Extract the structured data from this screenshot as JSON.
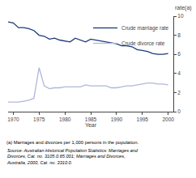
{
  "chart_data": {
    "type": "line",
    "xlabel": "Year",
    "ylabel": "rate(a)",
    "x": [
      1969,
      1970,
      1971,
      1972,
      1973,
      1974,
      1975,
      1976,
      1977,
      1978,
      1979,
      1980,
      1981,
      1982,
      1983,
      1984,
      1985,
      1986,
      1987,
      1988,
      1989,
      1990,
      1991,
      1992,
      1993,
      1994,
      1995,
      1996,
      1997,
      1998,
      1999,
      2000
    ],
    "series": [
      {
        "name": "Crude marriage rate",
        "color": "#1a3a7a",
        "values": [
          9.4,
          9.3,
          8.8,
          8.8,
          8.7,
          8.5,
          8.0,
          7.9,
          7.6,
          7.7,
          7.5,
          7.4,
          7.3,
          7.7,
          7.5,
          7.3,
          7.6,
          7.5,
          7.4,
          7.3,
          7.2,
          7.1,
          6.9,
          6.9,
          6.8,
          6.5,
          6.4,
          6.3,
          6.1,
          6.0,
          6.0,
          6.1
        ]
      },
      {
        "name": "Crude divorce rate",
        "color": "#b0b8d8",
        "values": [
          1.0,
          1.0,
          1.0,
          1.1,
          1.2,
          1.4,
          4.6,
          2.7,
          2.4,
          2.5,
          2.5,
          2.6,
          2.6,
          2.6,
          2.6,
          2.8,
          2.7,
          2.7,
          2.7,
          2.7,
          2.5,
          2.5,
          2.6,
          2.7,
          2.7,
          2.8,
          2.9,
          3.0,
          3.0,
          2.9,
          2.9,
          2.8
        ]
      }
    ],
    "xlim": [
      1969,
      2001
    ],
    "ylim": [
      0,
      10
    ],
    "xticks": [
      1970,
      1975,
      1980,
      1985,
      1990,
      1995,
      2000
    ],
    "yticks": [
      0,
      2,
      4,
      6,
      8,
      10
    ],
    "grid": false,
    "legend": "upper right",
    "annotations": [
      "(a) Marriages and divorces per 1,000 persons in the population.",
      "Source: Australian Historical Population Statistics: Marriages and",
      "Divorces, Cat. no. 3105.0.65.001; Marriages and Divorces,",
      "Australia, 2000, Cat. no. 3310.0."
    ]
  }
}
